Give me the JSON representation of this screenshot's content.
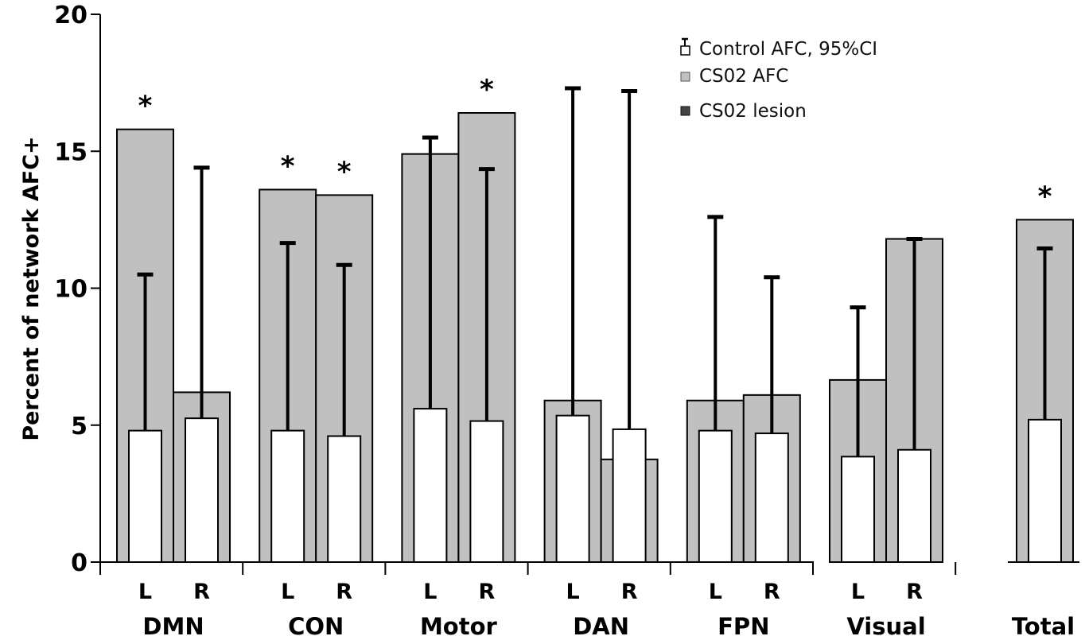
{
  "chart_data": {
    "type": "bar",
    "title": "",
    "xlabel": "",
    "ylabel": "Percent of network AFC+",
    "ylim": [
      0,
      20
    ],
    "yticks": [
      "0",
      "5",
      "10",
      "15",
      "20"
    ],
    "grid": false,
    "legend_position": "top-right",
    "legend": [
      {
        "name": "Control AFC, 95%CI",
        "color": "#ffffff",
        "icon": "white-box-with-errorbar-icon"
      },
      {
        "name": "CS02 AFC",
        "color": "#c0c0c0",
        "icon": "light-gray-box-icon"
      },
      {
        "name": "CS02 lesion",
        "color": "#444444",
        "icon": "dark-gray-box-icon"
      }
    ],
    "groups": [
      {
        "name": "DMN",
        "bars": [
          {
            "side": "L",
            "cs02_afc": 15.8,
            "control_afc": 4.8,
            "control_ci_upper": 10.5,
            "significant": true
          },
          {
            "side": "R",
            "cs02_afc": 6.2,
            "control_afc": 5.25,
            "control_ci_upper": 14.4,
            "significant": false
          }
        ]
      },
      {
        "name": "CON",
        "bars": [
          {
            "side": "L",
            "cs02_afc": 13.6,
            "control_afc": 4.8,
            "control_ci_upper": 11.65,
            "significant": true
          },
          {
            "side": "R",
            "cs02_afc": 13.4,
            "control_afc": 4.6,
            "control_ci_upper": 10.85,
            "significant": true
          }
        ]
      },
      {
        "name": "Motor",
        "bars": [
          {
            "side": "L",
            "cs02_afc": 14.9,
            "control_afc": 5.6,
            "control_ci_upper": 15.5,
            "significant": false
          },
          {
            "side": "R",
            "cs02_afc": 16.4,
            "control_afc": 5.15,
            "control_ci_upper": 14.35,
            "significant": true
          }
        ]
      },
      {
        "name": "DAN",
        "bars": [
          {
            "side": "L",
            "cs02_afc": 5.9,
            "control_afc": 5.35,
            "control_ci_upper": 17.3,
            "significant": false
          },
          {
            "side": "R",
            "cs02_afc": 3.75,
            "control_afc": 4.85,
            "control_ci_upper": 17.2,
            "significant": false
          }
        ]
      },
      {
        "name": "FPN",
        "bars": [
          {
            "side": "L",
            "cs02_afc": 5.9,
            "control_afc": 4.8,
            "control_ci_upper": 12.6,
            "significant": false
          },
          {
            "side": "R",
            "cs02_afc": 6.1,
            "control_afc": 4.7,
            "control_ci_upper": 10.4,
            "significant": false
          }
        ]
      },
      {
        "name": "Visual",
        "bars": [
          {
            "side": "L",
            "cs02_afc": 6.65,
            "control_afc": 3.85,
            "control_ci_upper": 9.3,
            "significant": false
          },
          {
            "side": "R",
            "cs02_afc": 11.8,
            "control_afc": 4.1,
            "control_ci_upper": 11.8,
            "significant": false
          }
        ]
      }
    ],
    "total": {
      "name": "Total",
      "cs02_afc": 12.5,
      "control_afc": 5.2,
      "control_ci_upper": 11.45,
      "significant": true
    },
    "significance_marker": "*"
  }
}
